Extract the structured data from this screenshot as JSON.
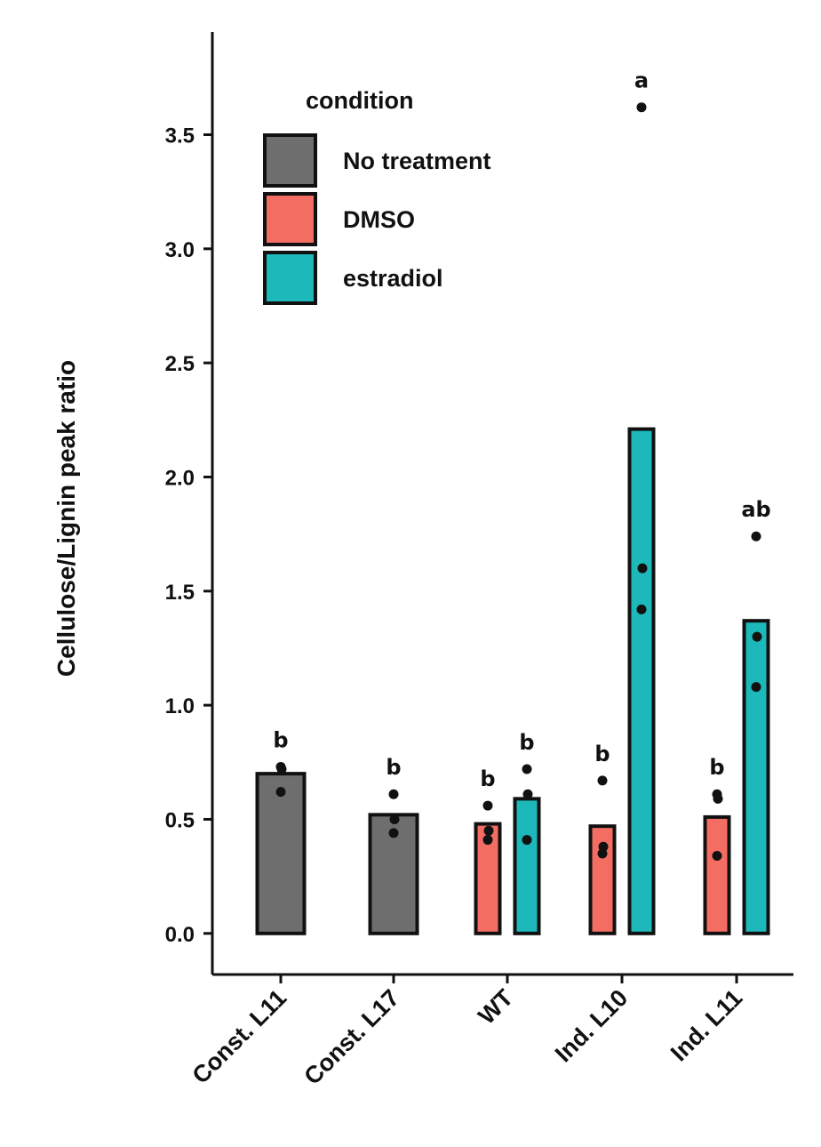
{
  "chart_data": {
    "type": "bar",
    "title": "",
    "xlabel": "",
    "ylabel": "Cellulose/Lignin peak ratio",
    "ylim": [
      -0.18,
      3.95
    ],
    "yticks": [
      "0.0",
      "0.5",
      "1.0",
      "1.5",
      "2.0",
      "2.5",
      "3.0",
      "3.5"
    ],
    "categories": [
      "Const. L11",
      "Const. L17",
      "WT",
      "Ind. L10",
      "Ind. L11"
    ],
    "legend": {
      "title": "condition",
      "placement": "top-left",
      "entries": [
        {
          "name": "No treatment",
          "color": "#6e6e6e"
        },
        {
          "name": "DMSO",
          "color": "#f46d63"
        },
        {
          "name": "estradiol",
          "color": "#1db8ba"
        }
      ]
    },
    "bars": [
      {
        "category": "Const. L11",
        "condition": "No treatment",
        "value": 0.7,
        "points": [
          0.73,
          0.72,
          0.62
        ],
        "sig": "b"
      },
      {
        "category": "Const. L17",
        "condition": "No treatment",
        "value": 0.52,
        "points": [
          0.61,
          0.5,
          0.44
        ],
        "sig": "b"
      },
      {
        "category": "WT",
        "condition": "DMSO",
        "value": 0.48,
        "points": [
          0.56,
          0.45,
          0.41
        ],
        "sig": "b"
      },
      {
        "category": "WT",
        "condition": "estradiol",
        "value": 0.59,
        "points": [
          0.72,
          0.61,
          0.41
        ],
        "sig": "b"
      },
      {
        "category": "Ind. L10",
        "condition": "DMSO",
        "value": 0.47,
        "points": [
          0.67,
          0.38,
          0.35
        ],
        "sig": "b"
      },
      {
        "category": "Ind. L10",
        "condition": "estradiol",
        "value": 2.21,
        "points": [
          3.62,
          1.6,
          1.42
        ],
        "sig": "a"
      },
      {
        "category": "Ind. L11",
        "condition": "DMSO",
        "value": 0.51,
        "points": [
          0.61,
          0.59,
          0.34
        ],
        "sig": "b"
      },
      {
        "category": "Ind. L11",
        "condition": "estradiol",
        "value": 1.37,
        "points": [
          1.74,
          1.3,
          1.08
        ],
        "sig": "ab"
      }
    ],
    "grid": false
  }
}
